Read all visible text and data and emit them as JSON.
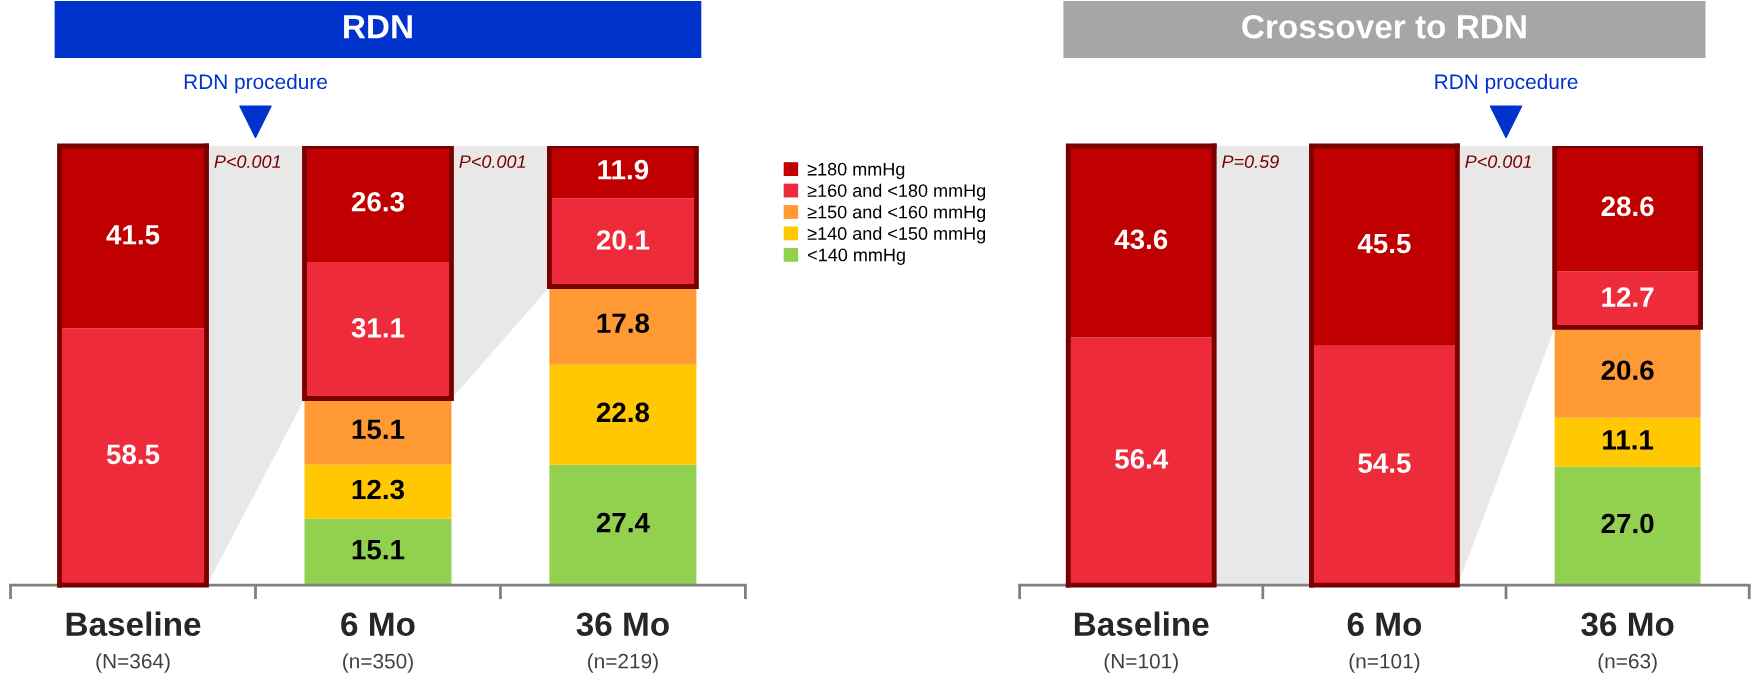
{
  "chart_data": [
    {
      "type": "bar",
      "title": "RDN",
      "stacked": true,
      "data_labels": true,
      "legend": "right",
      "tick_labels": "x",
      "grid": false,
      "ylim": [
        0,
        100
      ],
      "categories": [
        "Baseline\n(N=364)",
        "6 Mo\n(n=350)",
        "36 Mo\n(n=219)"
      ],
      "series": [
        {
          "name": "<140 mmHg",
          "color": "#92d050",
          "values": [
            null,
            15.1,
            27.4
          ],
          "value_labels": [
            null,
            "15.1",
            "27.4"
          ]
        },
        {
          "name": "≥140 and <150 mmHg",
          "color": "#ffc800",
          "values": [
            null,
            12.3,
            22.8
          ],
          "value_labels": [
            null,
            "12.3",
            "22.8"
          ]
        },
        {
          "name": "≥150 and <160 mmHg",
          "color": "#ff9933",
          "values": [
            null,
            15.1,
            17.8
          ],
          "value_labels": [
            null,
            "15.1",
            "17.8"
          ]
        },
        {
          "name": "≥160 and <180 mmHg",
          "color": "#ee2b3a",
          "values": [
            58.5,
            31.1,
            20.1
          ],
          "value_labels": [
            "58.5",
            "31.1",
            "20.1"
          ]
        },
        {
          "name": "≥180 mmHg",
          "color": "#c00000",
          "values": [
            41.5,
            26.3,
            11.9
          ],
          "value_labels": [
            "41.5",
            "26.3",
            "11.9"
          ]
        }
      ],
      "annotations": [
        "RDN procedure",
        "P<0.001",
        "P<0.001"
      ]
    },
    {
      "type": "bar",
      "title": "Crossover to RDN",
      "stacked": true,
      "data_labels": true,
      "tick_labels": "x",
      "grid": false,
      "ylim": [
        0,
        100
      ],
      "categories": [
        "Baseline\n(N=101)",
        "6 Mo\n(n=101)",
        "36 Mo\n(n=63)"
      ],
      "series": [
        {
          "color": "#92d050",
          "values": [
            null,
            null,
            27.0
          ],
          "value_labels": [
            null,
            null,
            "27.0"
          ]
        },
        {
          "color": "#ffc800",
          "values": [
            null,
            null,
            11.1
          ],
          "value_labels": [
            null,
            null,
            "11.1"
          ]
        },
        {
          "color": "#ff9933",
          "values": [
            null,
            null,
            20.6
          ],
          "value_labels": [
            null,
            null,
            "20.6"
          ]
        },
        {
          "color": "#ee2b3a",
          "values": [
            56.4,
            54.5,
            12.7
          ],
          "value_labels": [
            "56.4",
            "54.5",
            "12.7"
          ]
        },
        {
          "color": "#c00000",
          "values": [
            43.6,
            45.5,
            28.6
          ],
          "value_labels": [
            "43.6",
            "45.5",
            "28.6"
          ]
        }
      ],
      "annotations": [
        "RDN procedure",
        "P=0.59",
        "P<0.001"
      ]
    }
  ]
}
